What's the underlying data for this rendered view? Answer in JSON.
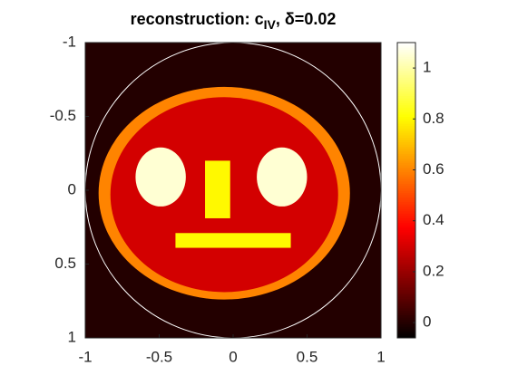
{
  "chart_data": {
    "type": "image",
    "title": {
      "text": "reconstruction: c",
      "subscript": "IV",
      "suffix": ", δ=0.02"
    },
    "xlim": [
      -1,
      1
    ],
    "ylim": [
      -1,
      1
    ],
    "xticks": [
      -1,
      -0.5,
      0,
      0.5,
      1
    ],
    "yticks": [
      -1,
      -0.5,
      0,
      0.5,
      1
    ],
    "y_reversed": true,
    "colormap": "hot",
    "clim": [
      -0.06,
      1.1
    ],
    "cticks": [
      0,
      0.2,
      0.4,
      0.6,
      0.8,
      1
    ],
    "background": 0,
    "shapes": [
      {
        "shape": "ellipse",
        "cx": -0.06,
        "cy": 0.02,
        "rx": 0.85,
        "ry": 0.72,
        "value": 0.6
      },
      {
        "shape": "ellipse",
        "cx": -0.06,
        "cy": 0.03,
        "rx": 0.77,
        "ry": 0.66,
        "value": 0.3
      },
      {
        "shape": "ellipse",
        "cx": -0.49,
        "cy": -0.09,
        "rx": 0.17,
        "ry": 0.2,
        "value": 1.05
      },
      {
        "shape": "ellipse",
        "cx": 0.33,
        "cy": -0.09,
        "rx": 0.17,
        "ry": 0.2,
        "value": 1.05
      },
      {
        "shape": "rect",
        "x0": -0.19,
        "x1": -0.02,
        "y0": -0.2,
        "y1": 0.19,
        "value": 0.8
      },
      {
        "shape": "rect",
        "x0": -0.39,
        "x1": 0.39,
        "y0": 0.29,
        "y1": 0.39,
        "value": 0.8
      }
    ]
  }
}
